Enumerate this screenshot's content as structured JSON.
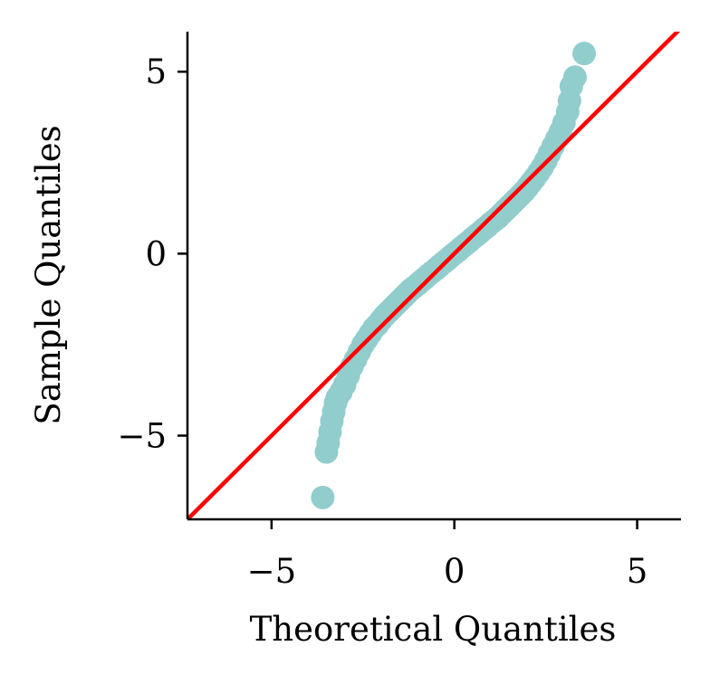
{
  "chart_data": {
    "type": "scatter",
    "title": "",
    "xlabel": "Theoretical Quantiles",
    "ylabel": "Sample Quantiles",
    "xlim": [
      -7.3,
      6.2
    ],
    "ylim": [
      -7.3,
      6.1
    ],
    "xticks": [
      -5,
      0,
      5
    ],
    "xtick_labels": [
      "−5",
      "0",
      "5"
    ],
    "yticks": [
      -5,
      0,
      5
    ],
    "ytick_labels": [
      "−5",
      "0",
      "5"
    ],
    "grid": false,
    "marker_color": "#92cdcd",
    "line_color": "#ff0000",
    "reference_line": {
      "slope": 1,
      "intercept": 0
    },
    "series": [
      {
        "points": [
          [
            -3.6,
            -6.7
          ],
          [
            -3.5,
            -5.45
          ],
          [
            -3.45,
            -5.2
          ],
          [
            -3.4,
            -4.9
          ],
          [
            -3.35,
            -4.6
          ],
          [
            -3.3,
            -4.35
          ],
          [
            -3.25,
            -4.1
          ],
          [
            -3.2,
            -3.95
          ],
          [
            -3.1,
            -3.8
          ],
          [
            -3.0,
            -3.6
          ],
          [
            -2.9,
            -3.35
          ],
          [
            -2.8,
            -3.1
          ],
          [
            -2.7,
            -2.9
          ],
          [
            -2.6,
            -2.7
          ],
          [
            -2.5,
            -2.5
          ],
          [
            -2.4,
            -2.35
          ],
          [
            -2.3,
            -2.2
          ],
          [
            -2.2,
            -2.05
          ],
          [
            -2.1,
            -1.95
          ],
          [
            -2.0,
            -1.82
          ],
          [
            -1.9,
            -1.7
          ],
          [
            -1.8,
            -1.6
          ],
          [
            -1.7,
            -1.5
          ],
          [
            -1.6,
            -1.4
          ],
          [
            -1.5,
            -1.3
          ],
          [
            -1.4,
            -1.2
          ],
          [
            -1.3,
            -1.1
          ],
          [
            -1.2,
            -1.0
          ],
          [
            -1.1,
            -0.92
          ],
          [
            -1.0,
            -0.84
          ],
          [
            -0.9,
            -0.75
          ],
          [
            -0.8,
            -0.67
          ],
          [
            -0.7,
            -0.58
          ],
          [
            -0.6,
            -0.5
          ],
          [
            -0.5,
            -0.42
          ],
          [
            -0.4,
            -0.33
          ],
          [
            -0.3,
            -0.25
          ],
          [
            -0.2,
            -0.17
          ],
          [
            -0.1,
            -0.08
          ],
          [
            0.0,
            0.0
          ],
          [
            0.1,
            0.08
          ],
          [
            0.2,
            0.17
          ],
          [
            0.3,
            0.25
          ],
          [
            0.4,
            0.33
          ],
          [
            0.5,
            0.42
          ],
          [
            0.6,
            0.5
          ],
          [
            0.7,
            0.58
          ],
          [
            0.8,
            0.67
          ],
          [
            0.9,
            0.75
          ],
          [
            1.0,
            0.84
          ],
          [
            1.1,
            0.92
          ],
          [
            1.2,
            1.0
          ],
          [
            1.3,
            1.1
          ],
          [
            1.4,
            1.2
          ],
          [
            1.5,
            1.3
          ],
          [
            1.6,
            1.4
          ],
          [
            1.7,
            1.5
          ],
          [
            1.8,
            1.6
          ],
          [
            1.9,
            1.7
          ],
          [
            2.0,
            1.82
          ],
          [
            2.1,
            1.95
          ],
          [
            2.2,
            2.08
          ],
          [
            2.3,
            2.22
          ],
          [
            2.4,
            2.37
          ],
          [
            2.5,
            2.55
          ],
          [
            2.6,
            2.75
          ],
          [
            2.7,
            2.95
          ],
          [
            2.8,
            3.15
          ],
          [
            2.9,
            3.35
          ],
          [
            3.0,
            3.6
          ],
          [
            3.1,
            3.9
          ],
          [
            3.15,
            4.2
          ],
          [
            3.2,
            4.6
          ],
          [
            3.3,
            4.85
          ],
          [
            3.55,
            5.5
          ]
        ]
      }
    ]
  }
}
